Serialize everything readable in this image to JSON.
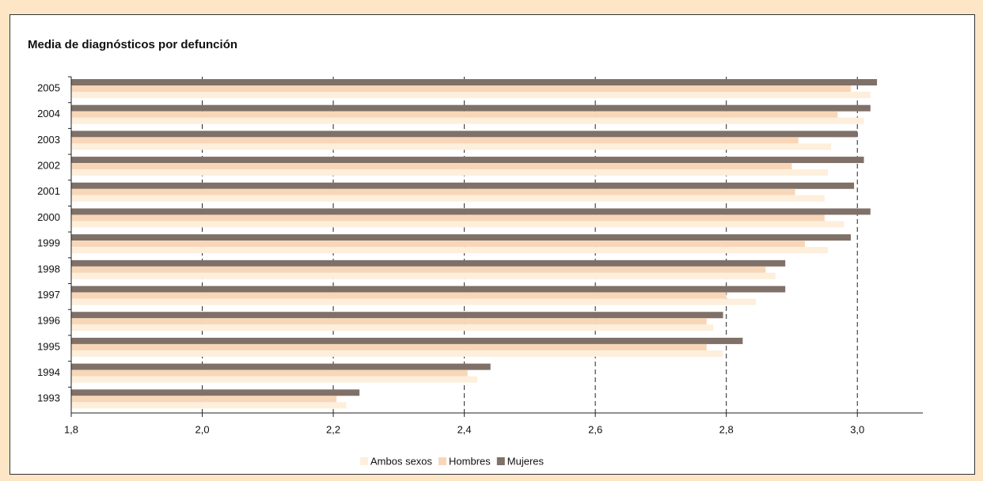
{
  "chart_data": {
    "type": "hbar",
    "title": "Media de diagnósticos por defunción",
    "categories": [
      "2005",
      "2004",
      "2003",
      "2002",
      "2001",
      "2000",
      "1999",
      "1998",
      "1997",
      "1996",
      "1995",
      "1994",
      "1993"
    ],
    "series": [
      {
        "name": "Ambos sexos",
        "color": "#fdefdc",
        "values": [
          3.02,
          3.01,
          2.96,
          2.955,
          2.95,
          2.98,
          2.955,
          2.875,
          2.845,
          2.78,
          2.795,
          2.42,
          2.22
        ]
      },
      {
        "name": "Hombres",
        "color": "#f8d7b8",
        "values": [
          2.99,
          2.97,
          2.91,
          2.9,
          2.905,
          2.95,
          2.92,
          2.86,
          2.8,
          2.77,
          2.77,
          2.405,
          2.205
        ]
      },
      {
        "name": "Mujeres",
        "color": "#7f7068",
        "values": [
          3.03,
          3.02,
          3.0,
          3.01,
          2.995,
          3.02,
          2.99,
          2.89,
          2.89,
          2.795,
          2.825,
          2.44,
          2.24
        ]
      }
    ],
    "xlim": [
      1.8,
      3.1
    ],
    "xticks": [
      {
        "value": 1.8,
        "label": "1,8"
      },
      {
        "value": 2.0,
        "label": "2,0"
      },
      {
        "value": 2.2,
        "label": "2,2"
      },
      {
        "value": 2.4,
        "label": "2,4"
      },
      {
        "value": 2.6,
        "label": "2,6"
      },
      {
        "value": 2.8,
        "label": "2,8"
      },
      {
        "value": 3.0,
        "label": "3,0"
      }
    ],
    "grid": true,
    "legend": "bottom"
  }
}
